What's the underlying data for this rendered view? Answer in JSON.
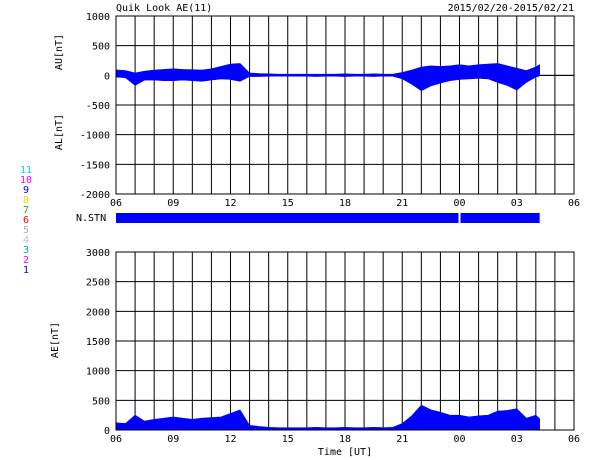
{
  "header": {
    "title": "Quik Look AE(11)",
    "date_range": "2015/02/20-2015/02/21"
  },
  "station_legend": {
    "items": [
      {
        "label": "11",
        "color": "#00d8d8"
      },
      {
        "label": "10",
        "color": "#ff00ff"
      },
      {
        "label": "9",
        "color": "#0000ff"
      },
      {
        "label": "8",
        "color": "#f0e000"
      },
      {
        "label": "7",
        "color": "#00c000"
      },
      {
        "label": "6",
        "color": "#ff0000"
      },
      {
        "label": "5",
        "color": "#b0b0b0"
      },
      {
        "label": "4",
        "color": "#c0c0c0"
      },
      {
        "label": "3",
        "color": "#00a0a0"
      },
      {
        "label": "2",
        "color": "#ff00ff"
      },
      {
        "label": "1",
        "color": "#0000c0"
      }
    ]
  },
  "nstn": {
    "label": "N.STN",
    "color": "#0000ff",
    "x_start_hours": 0,
    "x_end_hours": 22.2,
    "gap_at_hours": 18.0
  },
  "x_axis": {
    "ticks_hours": [
      0,
      3,
      6,
      9,
      12,
      15,
      18,
      21,
      24
    ],
    "tick_labels": [
      "06",
      "09",
      "12",
      "15",
      "18",
      "21",
      "00",
      "03",
      "06"
    ],
    "label": "Time [UT]"
  },
  "chart_data": [
    {
      "type": "area",
      "title": "AU/AL",
      "ylabel_upper": "AU[nT]",
      "ylabel_lower": "AL[nT]",
      "xlim_hours": [
        0,
        24
      ],
      "ylim": [
        -2000,
        1000
      ],
      "y_ticks": [
        1000,
        500,
        0,
        -500,
        -1000,
        -1500,
        -2000
      ],
      "fill_color": "#0000ff",
      "series": [
        {
          "label": "AU",
          "x_hours": [
            0,
            0.5,
            1,
            1.5,
            2,
            2.5,
            3,
            3.5,
            4,
            4.5,
            5,
            5.5,
            6,
            6.5,
            7,
            7.5,
            8,
            8.5,
            9,
            9.5,
            10,
            10.5,
            11,
            11.5,
            12,
            12.5,
            13,
            13.5,
            14,
            14.5,
            15,
            15.5,
            16,
            16.5,
            17,
            17.5,
            18,
            18.5,
            19,
            19.5,
            20,
            20.5,
            21,
            21.5,
            22,
            22.2
          ],
          "values": [
            90,
            80,
            40,
            70,
            90,
            100,
            110,
            100,
            95,
            90,
            110,
            150,
            190,
            200,
            40,
            30,
            25,
            20,
            20,
            20,
            20,
            20,
            20,
            20,
            25,
            20,
            20,
            25,
            20,
            20,
            50,
            90,
            140,
            160,
            150,
            160,
            180,
            160,
            180,
            190,
            200,
            160,
            120,
            80,
            140,
            180
          ]
        },
        {
          "label": "AL",
          "x_hours": [
            0,
            0.5,
            1,
            1.5,
            2,
            2.5,
            3,
            3.5,
            4,
            4.5,
            5,
            5.5,
            6,
            6.5,
            7,
            7.5,
            8,
            8.5,
            9,
            9.5,
            10,
            10.5,
            11,
            11.5,
            12,
            12.5,
            13,
            13.5,
            14,
            14.5,
            15,
            15.5,
            16,
            16.5,
            17,
            17.5,
            18,
            18.5,
            19,
            19.5,
            20,
            20.5,
            21,
            21.5,
            22,
            22.2
          ],
          "values": [
            -30,
            -40,
            -170,
            -80,
            -80,
            -90,
            -90,
            -80,
            -90,
            -100,
            -80,
            -60,
            -70,
            -100,
            -20,
            -20,
            -15,
            -15,
            -15,
            -15,
            -15,
            -20,
            -15,
            -15,
            -20,
            -15,
            -15,
            -20,
            -15,
            -15,
            -60,
            -150,
            -260,
            -180,
            -130,
            -90,
            -70,
            -60,
            -50,
            -60,
            -120,
            -170,
            -250,
            -120,
            -30,
            -10
          ]
        }
      ]
    },
    {
      "type": "area",
      "title": "AE",
      "ylabel": "AE[nT]",
      "xlim_hours": [
        0,
        24
      ],
      "ylim": [
        0,
        3000
      ],
      "y_ticks": [
        3000,
        2500,
        2000,
        1500,
        1000,
        500,
        0
      ],
      "fill_color": "#0000ff",
      "series": [
        {
          "label": "AE",
          "x_hours": [
            0,
            0.5,
            1,
            1.5,
            2,
            2.5,
            3,
            3.5,
            4,
            4.5,
            5,
            5.5,
            6,
            6.5,
            7,
            7.5,
            8,
            8.5,
            9,
            9.5,
            10,
            10.5,
            11,
            11.5,
            12,
            12.5,
            13,
            13.5,
            14,
            14.5,
            15,
            15.5,
            16,
            16.5,
            17,
            17.5,
            18,
            18.5,
            19,
            19.5,
            20,
            20.5,
            21,
            21.5,
            22,
            22.2
          ],
          "values": [
            120,
            110,
            250,
            150,
            180,
            200,
            220,
            200,
            180,
            200,
            210,
            220,
            280,
            340,
            80,
            60,
            45,
            40,
            40,
            40,
            40,
            45,
            40,
            40,
            45,
            40,
            40,
            45,
            40,
            45,
            110,
            240,
            420,
            340,
            300,
            250,
            250,
            220,
            240,
            250,
            320,
            330,
            360,
            200,
            250,
            190
          ]
        }
      ]
    }
  ]
}
